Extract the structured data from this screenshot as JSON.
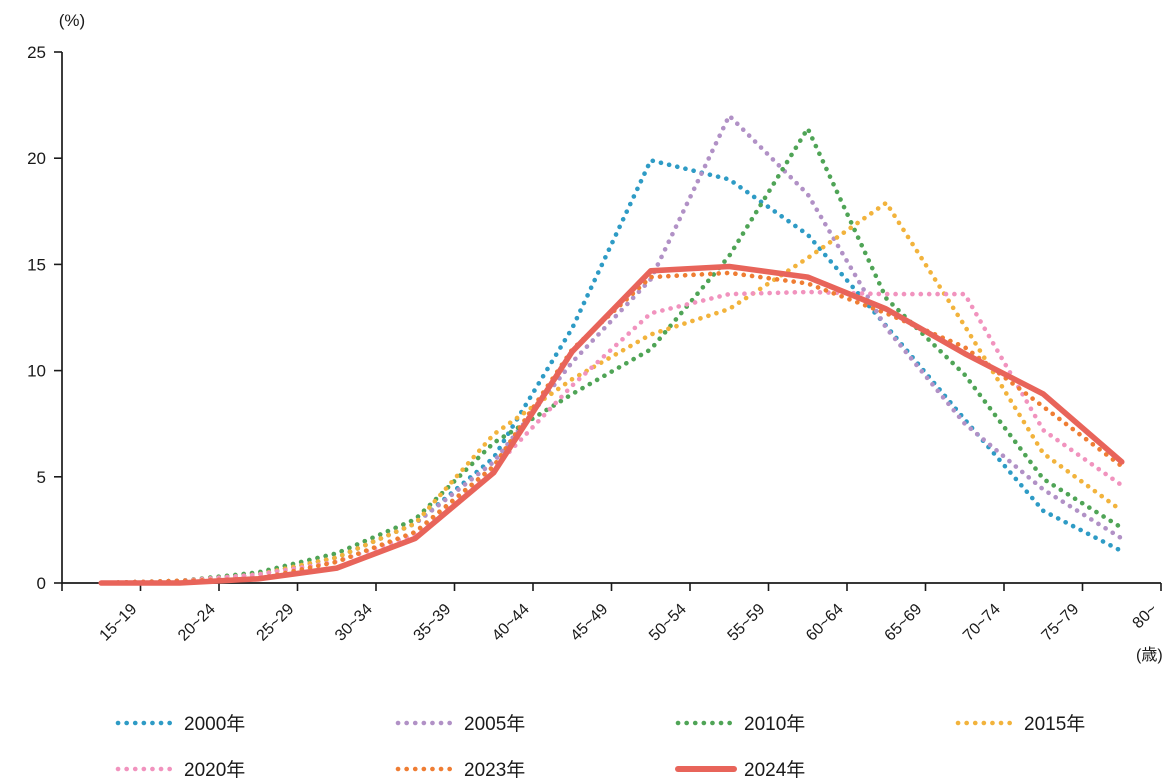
{
  "chart_data": {
    "type": "line",
    "title": "",
    "y_axis_unit_label": "(%)",
    "x_axis_unit_label": "(歳)",
    "ylim": [
      0,
      25
    ],
    "yticks": [
      0,
      5,
      10,
      15,
      20,
      25
    ],
    "grid": false,
    "legend_position": "bottom",
    "categories": [
      "15~19",
      "20~24",
      "25~29",
      "30~34",
      "35~39",
      "40~44",
      "45~49",
      "50~54",
      "55~59",
      "60~64",
      "65~69",
      "70~74",
      "75~79",
      "80~"
    ],
    "series": [
      {
        "name": "2000年",
        "color": "#2E9BC5",
        "style": "dotted",
        "values": [
          0.0,
          0.1,
          0.4,
          1.2,
          2.8,
          5.9,
          12.0,
          19.9,
          19.0,
          16.4,
          12.1,
          7.7,
          3.4,
          1.5
        ]
      },
      {
        "name": "2005年",
        "color": "#B191C6",
        "style": "dotted",
        "values": [
          0.0,
          0.1,
          0.4,
          1.2,
          2.8,
          5.7,
          10.4,
          14.3,
          22.0,
          18.3,
          12.0,
          7.5,
          4.4,
          2.1
        ]
      },
      {
        "name": "2010年",
        "color": "#4FA456",
        "style": "dotted",
        "values": [
          0.0,
          0.1,
          0.5,
          1.4,
          3.0,
          6.6,
          8.9,
          11.0,
          15.4,
          21.4,
          13.4,
          9.8,
          4.9,
          2.6
        ]
      },
      {
        "name": "2015年",
        "color": "#F2B33C",
        "style": "dotted",
        "values": [
          0.0,
          0.1,
          0.4,
          1.2,
          2.8,
          7.0,
          9.6,
          11.7,
          12.9,
          15.3,
          17.9,
          12.1,
          6.1,
          3.4
        ]
      },
      {
        "name": "2020年",
        "color": "#F193BE",
        "style": "dotted",
        "values": [
          0.0,
          0.1,
          0.4,
          1.0,
          2.3,
          5.4,
          9.3,
          12.7,
          13.6,
          13.7,
          13.6,
          13.6,
          7.2,
          4.6
        ]
      },
      {
        "name": "2023年",
        "color": "#EF7D33",
        "style": "dotted",
        "values": [
          0.0,
          0.1,
          0.2,
          1.0,
          2.4,
          5.5,
          11.0,
          14.4,
          14.6,
          14.1,
          12.7,
          11.1,
          8.3,
          5.5
        ]
      },
      {
        "name": "2024年",
        "color": "#E8645A",
        "style": "solid",
        "values": [
          0.0,
          0.0,
          0.2,
          0.7,
          2.1,
          5.2,
          10.9,
          14.7,
          14.9,
          14.4,
          12.9,
          10.8,
          8.9,
          5.7
        ]
      }
    ],
    "axis_color": "#1a1a1a"
  }
}
